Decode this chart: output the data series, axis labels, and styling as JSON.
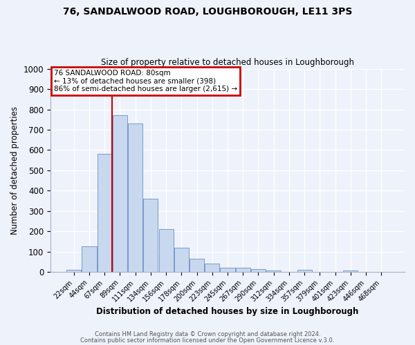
{
  "title": "76, SANDALWOOD ROAD, LOUGHBOROUGH, LE11 3PS",
  "subtitle": "Size of property relative to detached houses in Loughborough",
  "xlabel": "Distribution of detached houses by size in Loughborough",
  "ylabel": "Number of detached properties",
  "bar_labels": [
    "22sqm",
    "44sqm",
    "67sqm",
    "89sqm",
    "111sqm",
    "134sqm",
    "156sqm",
    "178sqm",
    "200sqm",
    "223sqm",
    "245sqm",
    "267sqm",
    "290sqm",
    "312sqm",
    "334sqm",
    "357sqm",
    "379sqm",
    "401sqm",
    "423sqm",
    "446sqm",
    "468sqm"
  ],
  "bar_heights": [
    10,
    128,
    580,
    770,
    730,
    360,
    210,
    120,
    65,
    42,
    20,
    20,
    15,
    7,
    0,
    10,
    0,
    0,
    8,
    0,
    0
  ],
  "bar_color": "#c8d8ee",
  "bar_edge_color": "#7799cc",
  "ylim": [
    0,
    1000
  ],
  "yticks": [
    0,
    100,
    200,
    300,
    400,
    500,
    600,
    700,
    800,
    900,
    1000
  ],
  "vline_x_index": 3,
  "vline_color": "#cc0000",
  "annotation_line1": "76 SANDALWOOD ROAD: 80sqm",
  "annotation_line2": "← 13% of detached houses are smaller (398)",
  "annotation_line3": "86% of semi-detached houses are larger (2,615) →",
  "annotation_box_color": "#cc0000",
  "footnote1": "Contains HM Land Registry data © Crown copyright and database right 2024.",
  "footnote2": "Contains public sector information licensed under the Open Government Licence v.3.0.",
  "background_color": "#eef2fa",
  "grid_color": "#ffffff"
}
